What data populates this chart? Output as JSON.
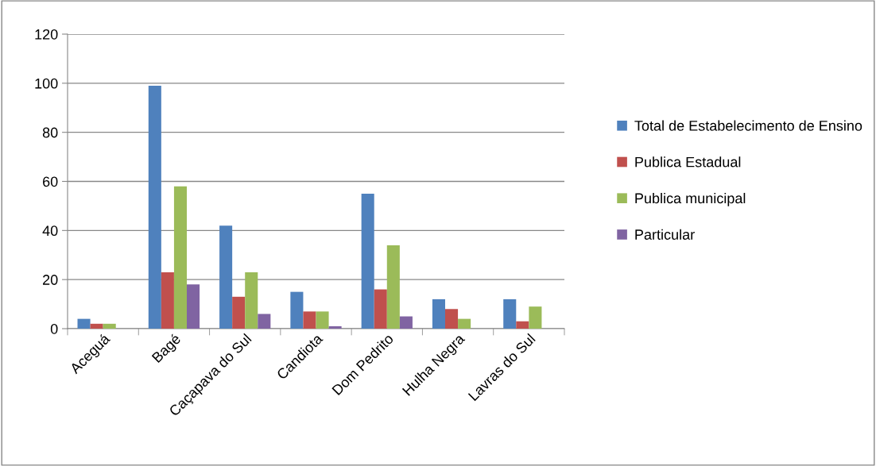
{
  "chart_data": {
    "type": "bar",
    "categories": [
      "Aceguá",
      "Bagé",
      "Caçapava do Sul",
      "Candiota",
      "Dom Pedrito",
      "Hulha Negra",
      "Lavras do Sul"
    ],
    "series": [
      {
        "name": "Total de Estabelecimento de Ensino",
        "color": "#4f81bd",
        "values": [
          4,
          99,
          42,
          15,
          55,
          12,
          12
        ]
      },
      {
        "name": "Publica Estadual",
        "color": "#c0504d",
        "values": [
          2,
          23,
          13,
          7,
          16,
          8,
          3
        ]
      },
      {
        "name": "Publica municipal",
        "color": "#9bbb59",
        "values": [
          2,
          58,
          23,
          7,
          34,
          4,
          9
        ]
      },
      {
        "name": "Particular",
        "color": "#8064a2",
        "values": [
          null,
          18,
          6,
          1,
          5,
          null,
          null
        ]
      }
    ],
    "ylim": [
      0,
      120
    ],
    "yticks": [
      0,
      20,
      40,
      60,
      80,
      100,
      120
    ],
    "grid": "y",
    "legend": "right"
  }
}
